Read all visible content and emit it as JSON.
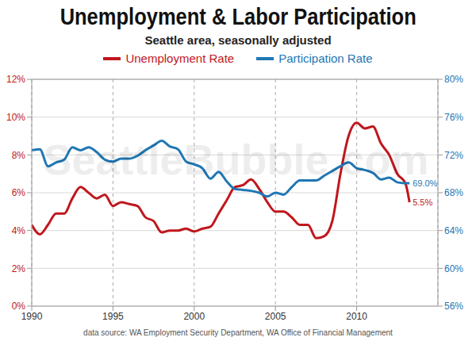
{
  "chart_data": {
    "type": "line",
    "title": "Unemployment & Labor Participation",
    "subtitle": "Seattle area, seasonally adjusted",
    "source": "data source: WA Employment Security Department, WA Office of Financial Management",
    "watermark": "SeattleBubble.com",
    "legend": "top",
    "grid": true,
    "x": [
      1990,
      1990.5,
      1991,
      1991.5,
      1992,
      1992.5,
      1993,
      1993.5,
      1994,
      1994.5,
      1995,
      1995.5,
      1996,
      1996.5,
      1997,
      1997.5,
      1998,
      1998.5,
      1999,
      1999.5,
      2000,
      2000.5,
      2001,
      2001.5,
      2002,
      2002.5,
      2003,
      2003.5,
      2004,
      2004.5,
      2005,
      2005.5,
      2006,
      2006.5,
      2007,
      2007.5,
      2008,
      2008.5,
      2009,
      2009.5,
      2010,
      2010.5,
      2011,
      2011.5,
      2012,
      2012.5,
      2013,
      2013.25
    ],
    "xlim": [
      1990,
      2015
    ],
    "xticks": [
      1990,
      1995,
      2000,
      2005,
      2010
    ],
    "ylim": [
      0,
      12
    ],
    "yticks": [
      {
        "value": 0,
        "label": "0%"
      },
      {
        "value": 2,
        "label": "2%"
      },
      {
        "value": 4,
        "label": "4%"
      },
      {
        "value": 6,
        "label": "6%"
      },
      {
        "value": 8,
        "label": "8%"
      },
      {
        "value": 10,
        "label": "10%"
      },
      {
        "value": 12,
        "label": "12%"
      }
    ],
    "y2lim": [
      56,
      80
    ],
    "y2ticks": [
      {
        "value": 56,
        "label": "56%"
      },
      {
        "value": 60,
        "label": "60%"
      },
      {
        "value": 64,
        "label": "64%"
      },
      {
        "value": 68,
        "label": "68%"
      },
      {
        "value": 72,
        "label": "72%"
      },
      {
        "value": 76,
        "label": "76%"
      },
      {
        "value": 80,
        "label": "80%"
      }
    ],
    "series": [
      {
        "name": "Unemployment Rate",
        "color": "#c0171c",
        "values": [
          4.3,
          3.8,
          4.3,
          4.9,
          4.9,
          5.7,
          6.3,
          6.0,
          5.7,
          5.9,
          5.3,
          5.5,
          5.4,
          5.3,
          4.7,
          4.5,
          3.9,
          4.0,
          4.0,
          4.1,
          3.95,
          4.1,
          4.2,
          4.9,
          5.6,
          6.3,
          6.4,
          6.7,
          6.2,
          5.5,
          5.0,
          5.0,
          4.7,
          4.3,
          4.3,
          3.6,
          3.7,
          4.5,
          7.0,
          9.0,
          9.7,
          9.4,
          9.5,
          8.6,
          8.0,
          7.0,
          6.5,
          5.5
        ]
      },
      {
        "name": "Participation Rate",
        "color": "#1f77b4",
        "axis": "y2",
        "values": [
          72.5,
          72.6,
          70.8,
          71.2,
          71.5,
          72.8,
          72.5,
          72.8,
          72.3,
          71.5,
          71.3,
          71.6,
          71.6,
          71.9,
          72.5,
          73.0,
          73.5,
          72.9,
          72.6,
          71.3,
          71.0,
          70.6,
          69.5,
          70.2,
          69.2,
          68.4,
          68.3,
          68.2,
          68.0,
          67.6,
          68.0,
          67.8,
          68.6,
          69.3,
          69.3,
          69.3,
          69.8,
          70.3,
          70.8,
          71.2,
          70.6,
          70.4,
          70.1,
          69.4,
          69.6,
          69.1,
          69.0,
          69.0
        ]
      }
    ],
    "annotations": [
      {
        "text": "69.0%",
        "x": 2013.25,
        "y": 69.0,
        "axis": "y2"
      },
      {
        "text": "5.5%",
        "x": 2013.25,
        "y": 5.5,
        "axis": "y"
      }
    ]
  }
}
